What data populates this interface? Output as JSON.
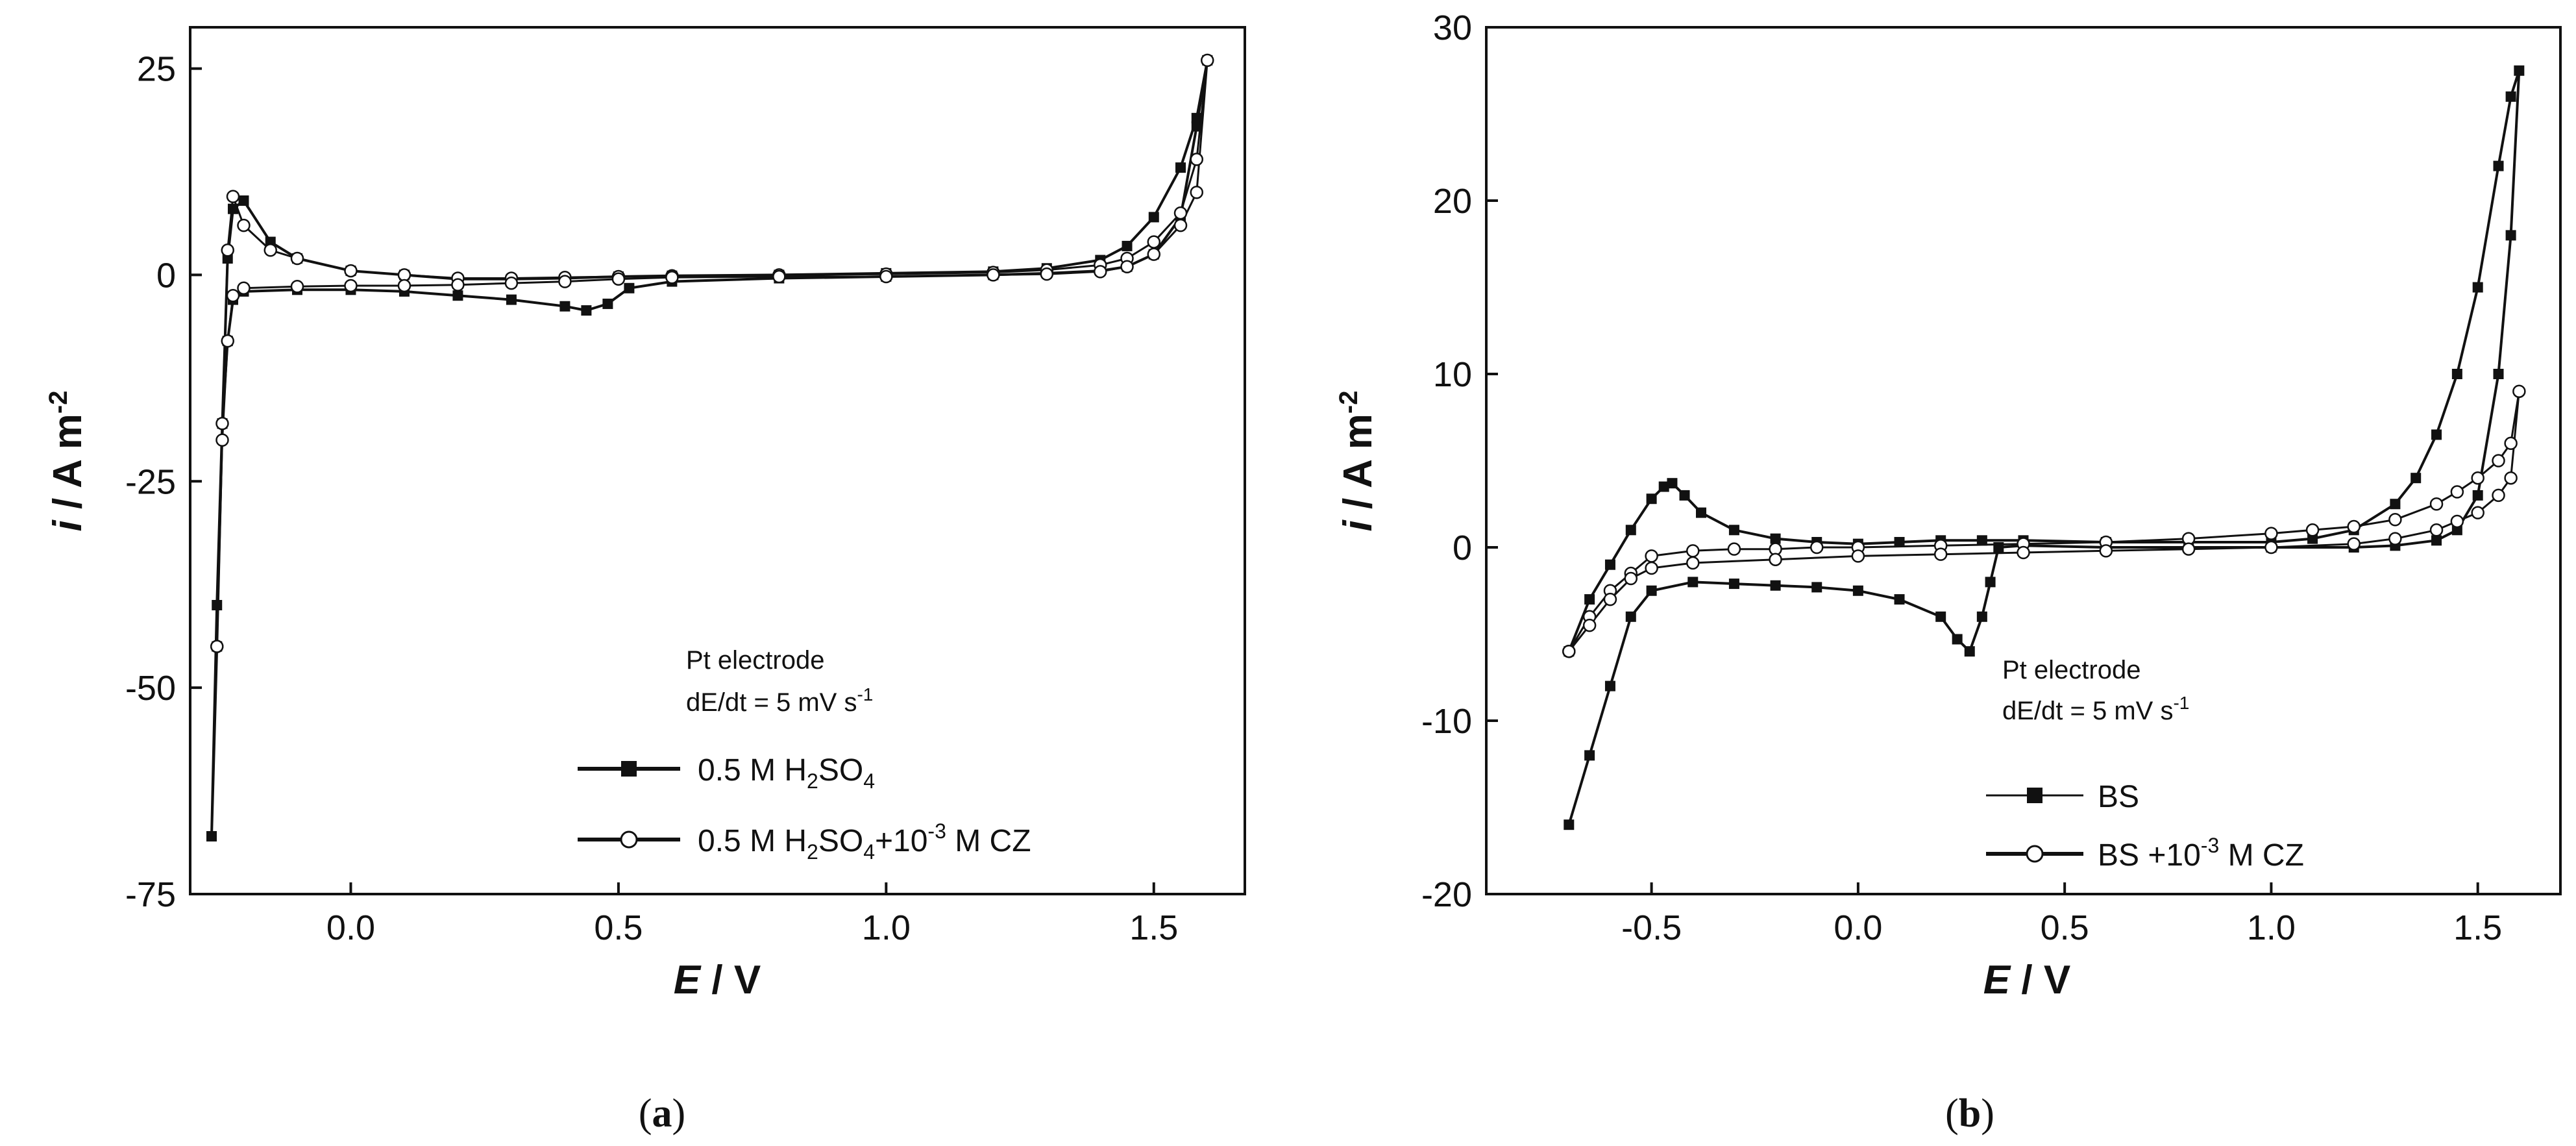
{
  "chart_data": [
    {
      "id": "a",
      "type": "line",
      "panel_label": "a",
      "xlabel_var": "E",
      "xlabel_unit": " / V",
      "ylabel_var": "i",
      "ylabel_unit": " / A m",
      "ylabel_exp": "-2",
      "xlim": [
        -0.3,
        1.67
      ],
      "ylim": [
        -75,
        30
      ],
      "xticks": [
        0.0,
        0.5,
        1.0,
        1.5
      ],
      "xtick_labels": [
        "0.0",
        "0.5",
        "1.0",
        "1.5"
      ],
      "yticks": [
        25,
        0,
        -25,
        -50,
        -75
      ],
      "ytick_labels": [
        "25",
        "0",
        "-25",
        "-50",
        "-75"
      ],
      "annotation": {
        "line1": "Pt electrode",
        "line2_main": "dE/dt = 5 mV s",
        "line2_exp": "-1"
      },
      "legend_position": "bottom-right",
      "series": [
        {
          "name": "0.5 M H2SO4",
          "legend": {
            "p1": "0.5 M H",
            "sub1": "2",
            "p2": "SO",
            "sub2": "4"
          },
          "marker": "filled-square",
          "x": [
            -0.26,
            -0.25,
            -0.24,
            -0.23,
            -0.22,
            -0.2,
            -0.15,
            -0.1,
            0.0,
            0.1,
            0.2,
            0.3,
            0.4,
            0.5,
            0.6,
            0.8,
            1.0,
            1.2,
            1.3,
            1.4,
            1.45,
            1.5,
            1.55,
            1.58,
            1.6,
            1.58,
            1.55,
            1.5,
            1.45,
            1.4,
            1.3,
            1.2,
            1.0,
            0.8,
            0.6,
            0.52,
            0.48,
            0.44,
            0.4,
            0.3,
            0.2,
            0.1,
            0.0,
            -0.1,
            -0.2,
            -0.22,
            -0.23,
            -0.24,
            -0.25,
            -0.26
          ],
          "y": [
            -68,
            -45,
            -18,
            2,
            8,
            9,
            4,
            2,
            0.5,
            0,
            -0.5,
            -0.5,
            -0.4,
            -0.2,
            -0.1,
            0,
            0.2,
            0.4,
            0.8,
            1.8,
            3.5,
            7,
            13,
            19,
            26,
            18,
            7,
            2.5,
            1,
            0.5,
            0.2,
            0,
            -0.2,
            -0.4,
            -0.8,
            -1.6,
            -3.5,
            -4.3,
            -3.8,
            -3,
            -2.5,
            -2,
            -1.8,
            -1.8,
            -2,
            -3,
            -8,
            -18,
            -40,
            -68
          ]
        },
        {
          "name": "0.5 M H2SO4+10-3 M CZ",
          "legend": {
            "p1": "0.5 M H",
            "sub1": "2",
            "p2": "SO",
            "sub2": "4",
            "p3": "+10",
            "sup": "-3",
            "p4": " M CZ"
          },
          "marker": "open-circle",
          "x": [
            -0.25,
            -0.24,
            -0.23,
            -0.22,
            -0.2,
            -0.15,
            -0.1,
            0.0,
            0.1,
            0.2,
            0.3,
            0.4,
            0.5,
            0.6,
            0.8,
            1.0,
            1.2,
            1.3,
            1.4,
            1.45,
            1.5,
            1.55,
            1.58,
            1.6,
            1.58,
            1.55,
            1.5,
            1.45,
            1.4,
            1.3,
            1.2,
            1.0,
            0.8,
            0.6,
            0.5,
            0.4,
            0.3,
            0.2,
            0.1,
            0.0,
            -0.1,
            -0.2,
            -0.22,
            -0.23,
            -0.24,
            -0.25
          ],
          "y": [
            -45,
            -18,
            3,
            9.5,
            6,
            3,
            2,
            0.5,
            0,
            -0.4,
            -0.4,
            -0.3,
            -0.2,
            -0.1,
            0,
            0.1,
            0.3,
            0.6,
            1.2,
            2,
            4,
            7.5,
            14,
            26,
            10,
            6,
            2.5,
            1,
            0.4,
            0.1,
            0,
            -0.2,
            -0.2,
            -0.3,
            -0.5,
            -0.8,
            -1,
            -1.2,
            -1.3,
            -1.3,
            -1.4,
            -1.6,
            -2.5,
            -8,
            -20,
            -45
          ]
        }
      ]
    },
    {
      "id": "b",
      "type": "line",
      "panel_label": "b",
      "xlabel_var": "E",
      "xlabel_unit": " / V",
      "ylabel_var": "i",
      "ylabel_unit": " / A m",
      "ylabel_exp": "-2",
      "xlim": [
        -0.9,
        1.7
      ],
      "ylim": [
        -20,
        30
      ],
      "xticks": [
        -0.5,
        0.0,
        0.5,
        1.0,
        1.5
      ],
      "xtick_labels": [
        "-0.5",
        "0.0",
        "0.5",
        "1.0",
        "1.5"
      ],
      "yticks": [
        30,
        20,
        10,
        0,
        -10,
        -20
      ],
      "ytick_labels": [
        "30",
        "20",
        "10",
        "0",
        "-10",
        "-20"
      ],
      "annotation": {
        "line1": "Pt electrode",
        "line2_main": "dE/dt = 5 mV s",
        "line2_exp": "-1"
      },
      "legend_position": "bottom-right",
      "series": [
        {
          "name": "BS",
          "legend": {
            "p1": "BS"
          },
          "marker": "filled-square",
          "x": [
            -0.7,
            -0.65,
            -0.6,
            -0.55,
            -0.5,
            -0.47,
            -0.45,
            -0.42,
            -0.38,
            -0.3,
            -0.2,
            -0.1,
            0.0,
            0.1,
            0.2,
            0.3,
            0.4,
            0.6,
            0.8,
            1.0,
            1.1,
            1.2,
            1.3,
            1.35,
            1.4,
            1.45,
            1.5,
            1.55,
            1.58,
            1.6,
            1.58,
            1.55,
            1.5,
            1.45,
            1.4,
            1.3,
            1.2,
            1.0,
            0.8,
            0.6,
            0.4,
            0.34,
            0.32,
            0.3,
            0.27,
            0.24,
            0.2,
            0.1,
            0.0,
            -0.1,
            -0.2,
            -0.3,
            -0.4,
            -0.5,
            -0.55,
            -0.6,
            -0.65,
            -0.7
          ],
          "y": [
            -6,
            -3,
            -1,
            1,
            2.8,
            3.5,
            3.7,
            3,
            2,
            1,
            0.5,
            0.3,
            0.2,
            0.3,
            0.4,
            0.4,
            0.4,
            0.3,
            0.3,
            0.3,
            0.5,
            1,
            2.5,
            4,
            6.5,
            10,
            15,
            22,
            26,
            27.5,
            18,
            10,
            3,
            1,
            0.4,
            0.1,
            0,
            0,
            0,
            0,
            0.1,
            0,
            -2,
            -4,
            -6,
            -5.3,
            -4,
            -3,
            -2.5,
            -2.3,
            -2.2,
            -2.1,
            -2,
            -2.5,
            -4,
            -8,
            -12,
            -16
          ]
        },
        {
          "name": "BS +10-3 M CZ",
          "legend": {
            "p1": "BS +10",
            "sup": "-3",
            "p2": " M CZ"
          },
          "marker": "open-circle",
          "x": [
            -0.7,
            -0.65,
            -0.6,
            -0.55,
            -0.5,
            -0.4,
            -0.3,
            -0.2,
            -0.1,
            0.0,
            0.2,
            0.4,
            0.6,
            0.8,
            1.0,
            1.1,
            1.2,
            1.3,
            1.4,
            1.45,
            1.5,
            1.55,
            1.58,
            1.6,
            1.58,
            1.55,
            1.5,
            1.45,
            1.4,
            1.3,
            1.2,
            1.0,
            0.8,
            0.6,
            0.4,
            0.2,
            0.0,
            -0.2,
            -0.4,
            -0.5,
            -0.55,
            -0.6,
            -0.65,
            -0.7
          ],
          "y": [
            -6,
            -4,
            -2.5,
            -1.5,
            -0.5,
            -0.2,
            -0.1,
            -0.1,
            0,
            0,
            0.1,
            0.2,
            0.3,
            0.5,
            0.8,
            1,
            1.2,
            1.6,
            2.5,
            3.2,
            4,
            5,
            6,
            9,
            4,
            3,
            2,
            1.5,
            1,
            0.5,
            0.2,
            0,
            -0.1,
            -0.2,
            -0.3,
            -0.4,
            -0.5,
            -0.7,
            -0.9,
            -1.2,
            -1.8,
            -3,
            -4.5,
            -6
          ]
        }
      ]
    }
  ]
}
